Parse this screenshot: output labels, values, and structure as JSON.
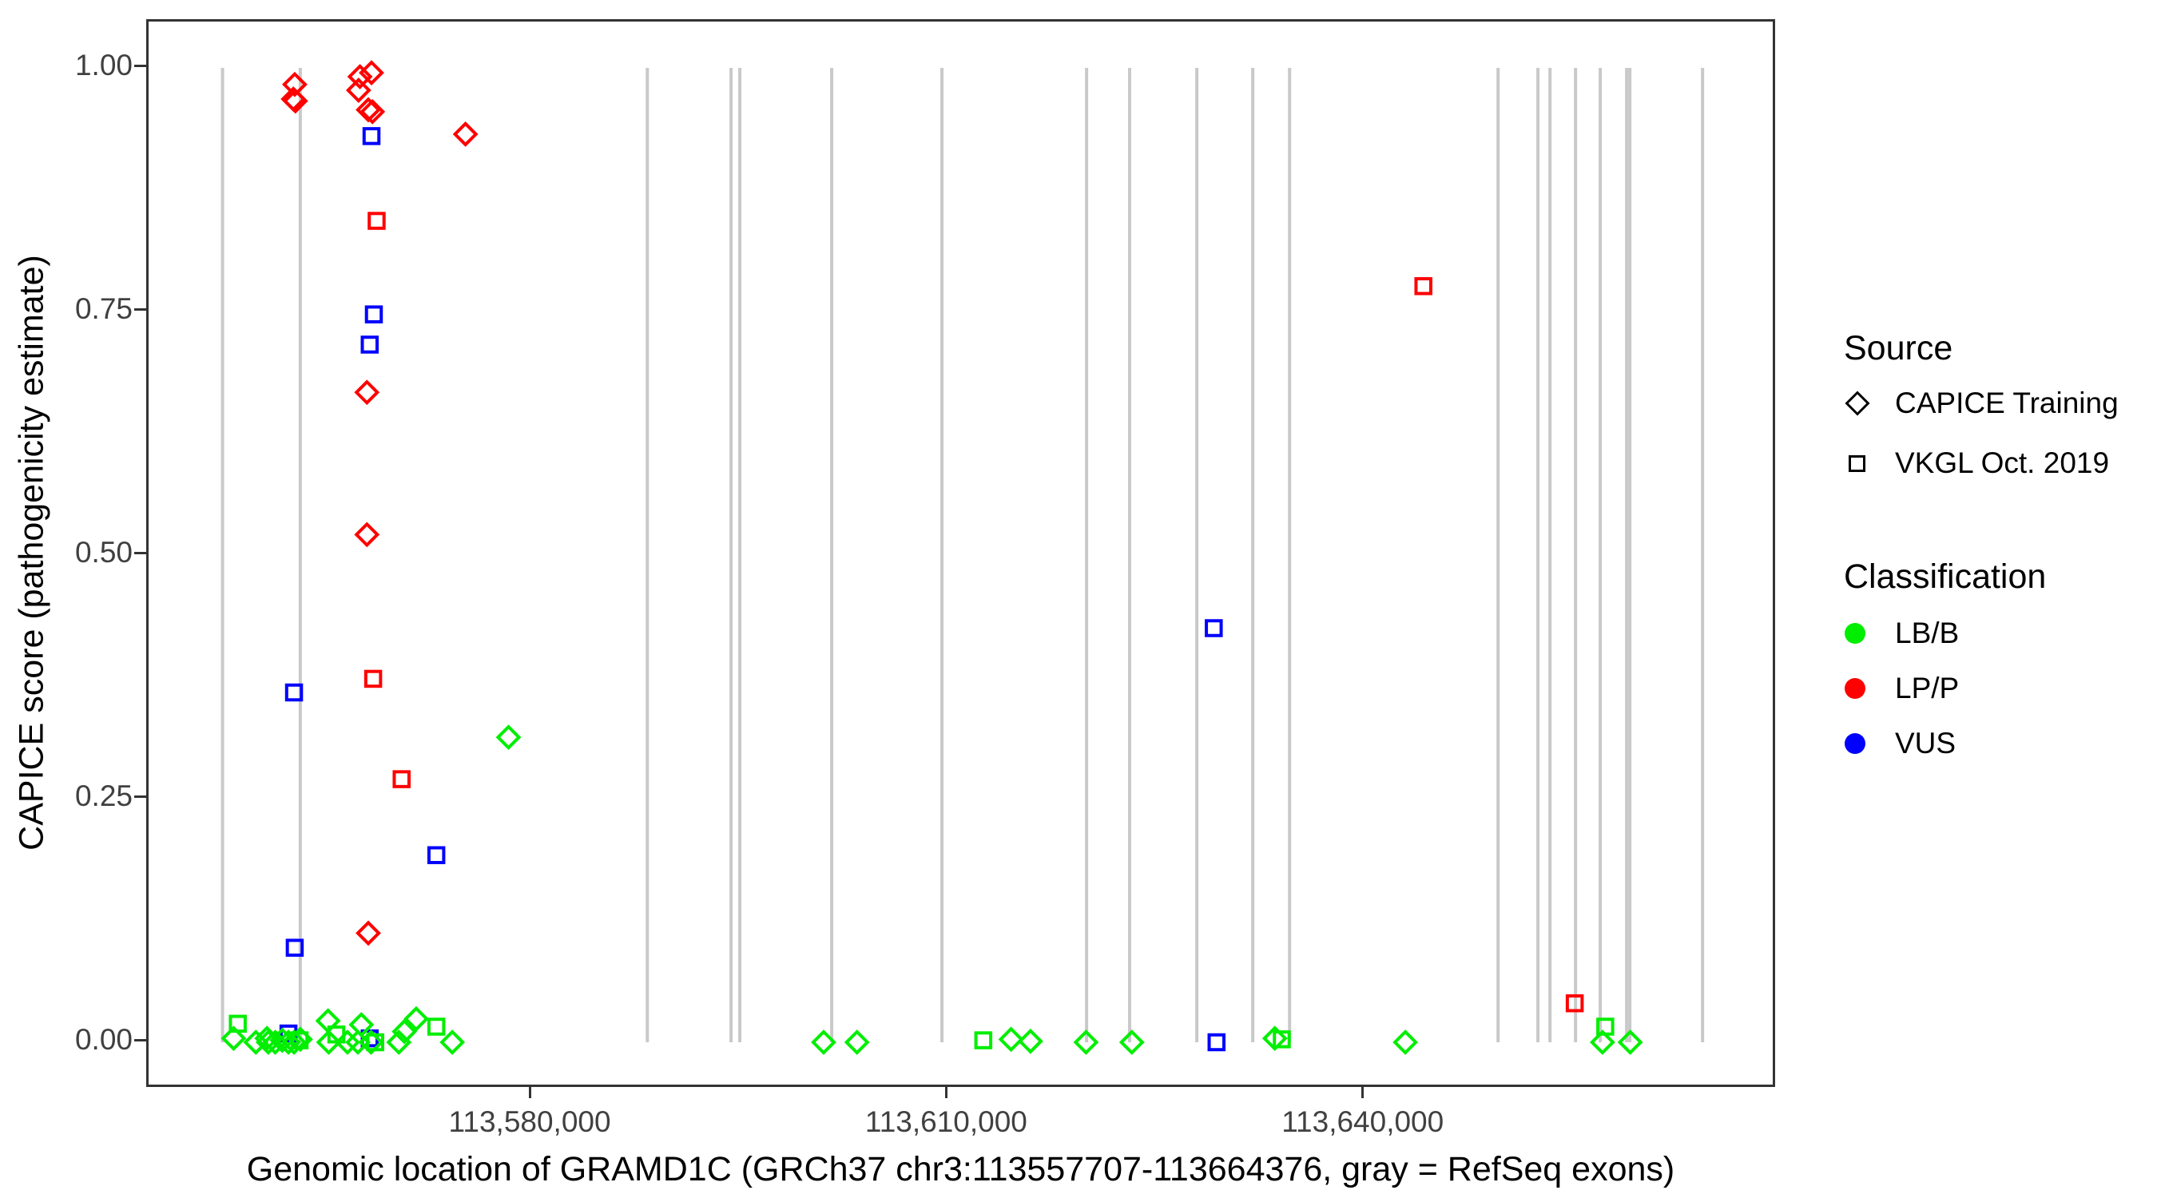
{
  "figure": {
    "y_axis": {
      "title": "CAPICE score (pathogenicity estimate)",
      "tick_labels": [
        "0.00",
        "0.25",
        "0.50",
        "0.75",
        "1.00"
      ],
      "tick_values": [
        0.0,
        0.25,
        0.5,
        0.75,
        1.0
      ]
    },
    "x_axis": {
      "title": "Genomic location of GRAMD1C (GRCh37 chr3:113557707-113664376, gray = RefSeq exons)",
      "tick_labels": [
        "113,580,000",
        "113,610,000",
        "113,640,000"
      ],
      "tick_values": [
        113580000,
        113610000,
        113640000
      ]
    },
    "legend": {
      "source": {
        "title": "Source",
        "items": [
          {
            "label": "CAPICE Training",
            "shape": "diamond"
          },
          {
            "label": "VKGL Oct. 2019",
            "shape": "square"
          }
        ]
      },
      "classification": {
        "title": "Classification",
        "items": [
          {
            "label": "LB/B",
            "color": "#00EE00"
          },
          {
            "label": "LP/P",
            "color": "#FF0000"
          },
          {
            "label": "VUS",
            "color": "#0000FF"
          }
        ]
      }
    },
    "colors": {
      "LB/B": "#00EE00",
      "LP/P": "#FF0000",
      "VUS": "#0000FF",
      "exon_line": "#C9C9C9",
      "axis_text": "#404040",
      "border": "#333333"
    }
  },
  "chart_data": {
    "type": "scatter",
    "title": "",
    "xlabel": "Genomic location of GRAMD1C (GRCh37 chr3:113557707-113664376, gray = RefSeq exons)",
    "ylabel": "CAPICE score (pathogenicity estimate)",
    "xlim": [
      113552374,
      113669709
    ],
    "ylim": [
      0,
      1
    ],
    "grid": false,
    "legend_position": "right",
    "shape_by": "Source (diamond = CAPICE Training, square = VKGL Oct. 2019)",
    "color_by": "Classification (green = LB/B, red = LP/P, blue = VUS)",
    "exon_lines_x": [
      113557700,
      113563300,
      113588300,
      113594330,
      113594960,
      113601580,
      113609520,
      113619940,
      113623040,
      113627880,
      113631910,
      113634560,
      113649580,
      113652450,
      113653320,
      113655160,
      113656940,
      113658840,
      113659070,
      113664310
    ],
    "points": [
      {
        "x": 113562900,
        "y": 0.983,
        "source": "CAPICE Training",
        "classification": "LP/P"
      },
      {
        "x": 113562800,
        "y": 0.968,
        "source": "CAPICE Training",
        "classification": "LP/P"
      },
      {
        "x": 113562950,
        "y": 0.966,
        "source": "CAPICE Training",
        "classification": "LP/P"
      },
      {
        "x": 113567600,
        "y": 0.991,
        "source": "CAPICE Training",
        "classification": "LP/P"
      },
      {
        "x": 113568430,
        "y": 0.995,
        "source": "CAPICE Training",
        "classification": "LP/P"
      },
      {
        "x": 113567500,
        "y": 0.977,
        "source": "CAPICE Training",
        "classification": "LP/P"
      },
      {
        "x": 113568200,
        "y": 0.957,
        "source": "CAPICE Training",
        "classification": "LP/P"
      },
      {
        "x": 113568500,
        "y": 0.955,
        "source": "CAPICE Training",
        "classification": "LP/P"
      },
      {
        "x": 113575200,
        "y": 0.932,
        "source": "CAPICE Training",
        "classification": "LP/P"
      },
      {
        "x": 113568100,
        "y": 0.667,
        "source": "CAPICE Training",
        "classification": "LP/P"
      },
      {
        "x": 113568100,
        "y": 0.521,
        "source": "CAPICE Training",
        "classification": "LP/P"
      },
      {
        "x": 113568200,
        "y": 0.112,
        "source": "CAPICE Training",
        "classification": "LP/P"
      },
      {
        "x": 113568800,
        "y": 0.843,
        "source": "VKGL Oct. 2019",
        "classification": "LP/P"
      },
      {
        "x": 113568550,
        "y": 0.373,
        "source": "VKGL Oct. 2019",
        "classification": "LP/P"
      },
      {
        "x": 113570600,
        "y": 0.27,
        "source": "VKGL Oct. 2019",
        "classification": "LP/P"
      },
      {
        "x": 113644200,
        "y": 0.776,
        "source": "VKGL Oct. 2019",
        "classification": "LP/P"
      },
      {
        "x": 113655100,
        "y": 0.04,
        "source": "VKGL Oct. 2019",
        "classification": "LP/P"
      },
      {
        "x": 113568430,
        "y": 0.93,
        "source": "VKGL Oct. 2019",
        "classification": "VUS"
      },
      {
        "x": 113568600,
        "y": 0.747,
        "source": "VKGL Oct. 2019",
        "classification": "VUS"
      },
      {
        "x": 113568300,
        "y": 0.716,
        "source": "VKGL Oct. 2019",
        "classification": "VUS"
      },
      {
        "x": 113562850,
        "y": 0.359,
        "source": "VKGL Oct. 2019",
        "classification": "VUS"
      },
      {
        "x": 113573100,
        "y": 0.192,
        "source": "VKGL Oct. 2019",
        "classification": "VUS"
      },
      {
        "x": 113562900,
        "y": 0.097,
        "source": "VKGL Oct. 2019",
        "classification": "VUS"
      },
      {
        "x": 113629100,
        "y": 0.425,
        "source": "VKGL Oct. 2019",
        "classification": "VUS"
      },
      {
        "x": 113629300,
        "y": 0.0,
        "source": "VKGL Oct. 2019",
        "classification": "VUS"
      },
      {
        "x": 113562450,
        "y": 0.009,
        "source": "VKGL Oct. 2019",
        "classification": "VUS"
      },
      {
        "x": 113568300,
        "y": 0.004,
        "source": "VKGL Oct. 2019",
        "classification": "VUS"
      },
      {
        "x": 113578300,
        "y": 0.313,
        "source": "CAPICE Training",
        "classification": "LB/B"
      },
      {
        "x": 113558500,
        "y": 0.004,
        "source": "CAPICE Training",
        "classification": "LB/B"
      },
      {
        "x": 113560100,
        "y": 0.0,
        "source": "CAPICE Training",
        "classification": "LB/B"
      },
      {
        "x": 113560900,
        "y": 0.004,
        "source": "CAPICE Training",
        "classification": "LB/B"
      },
      {
        "x": 113561000,
        "y": 0.0,
        "source": "CAPICE Training",
        "classification": "LB/B"
      },
      {
        "x": 113561500,
        "y": 0.0,
        "source": "CAPICE Training",
        "classification": "LB/B"
      },
      {
        "x": 113562000,
        "y": 0.002,
        "source": "CAPICE Training",
        "classification": "LB/B"
      },
      {
        "x": 113562450,
        "y": 0.0,
        "source": "CAPICE Training",
        "classification": "LB/B"
      },
      {
        "x": 113562850,
        "y": 0.0,
        "source": "CAPICE Training",
        "classification": "LB/B"
      },
      {
        "x": 113563300,
        "y": 0.003,
        "source": "CAPICE Training",
        "classification": "LB/B"
      },
      {
        "x": 113565300,
        "y": 0.022,
        "source": "CAPICE Training",
        "classification": "LB/B"
      },
      {
        "x": 113565350,
        "y": 0.0,
        "source": "CAPICE Training",
        "classification": "LB/B"
      },
      {
        "x": 113566700,
        "y": 0.0,
        "source": "CAPICE Training",
        "classification": "LB/B"
      },
      {
        "x": 113567700,
        "y": 0.018,
        "source": "CAPICE Training",
        "classification": "LB/B"
      },
      {
        "x": 113567450,
        "y": 0.0,
        "source": "CAPICE Training",
        "classification": "LB/B"
      },
      {
        "x": 113568400,
        "y": 0.0,
        "source": "CAPICE Training",
        "classification": "LB/B"
      },
      {
        "x": 113570400,
        "y": 0.0,
        "source": "CAPICE Training",
        "classification": "LB/B"
      },
      {
        "x": 113570800,
        "y": 0.011,
        "source": "CAPICE Training",
        "classification": "LB/B"
      },
      {
        "x": 113571650,
        "y": 0.024,
        "source": "CAPICE Training",
        "classification": "LB/B"
      },
      {
        "x": 113574250,
        "y": 0.0,
        "source": "CAPICE Training",
        "classification": "LB/B"
      },
      {
        "x": 113601000,
        "y": 0.0,
        "source": "CAPICE Training",
        "classification": "LB/B"
      },
      {
        "x": 113603400,
        "y": 0.0,
        "source": "CAPICE Training",
        "classification": "LB/B"
      },
      {
        "x": 113614500,
        "y": 0.003,
        "source": "CAPICE Training",
        "classification": "LB/B"
      },
      {
        "x": 113615900,
        "y": 0.001,
        "source": "CAPICE Training",
        "classification": "LB/B"
      },
      {
        "x": 113619900,
        "y": 0.0,
        "source": "CAPICE Training",
        "classification": "LB/B"
      },
      {
        "x": 113623200,
        "y": 0.0,
        "source": "CAPICE Training",
        "classification": "LB/B"
      },
      {
        "x": 113633500,
        "y": 0.004,
        "source": "CAPICE Training",
        "classification": "LB/B"
      },
      {
        "x": 113642900,
        "y": 0.0,
        "source": "CAPICE Training",
        "classification": "LB/B"
      },
      {
        "x": 113657100,
        "y": 0.0,
        "source": "CAPICE Training",
        "classification": "LB/B"
      },
      {
        "x": 113659100,
        "y": 0.0,
        "source": "CAPICE Training",
        "classification": "LB/B"
      },
      {
        "x": 113558800,
        "y": 0.019,
        "source": "VKGL Oct. 2019",
        "classification": "LB/B"
      },
      {
        "x": 113563250,
        "y": 0.002,
        "source": "VKGL Oct. 2019",
        "classification": "LB/B"
      },
      {
        "x": 113565900,
        "y": 0.008,
        "source": "VKGL Oct. 2019",
        "classification": "LB/B"
      },
      {
        "x": 113568700,
        "y": 0.0,
        "source": "VKGL Oct. 2019",
        "classification": "LB/B"
      },
      {
        "x": 113573100,
        "y": 0.016,
        "source": "VKGL Oct. 2019",
        "classification": "LB/B"
      },
      {
        "x": 113612500,
        "y": 0.002,
        "source": "VKGL Oct. 2019",
        "classification": "LB/B"
      },
      {
        "x": 113634000,
        "y": 0.003,
        "source": "VKGL Oct. 2019",
        "classification": "LB/B"
      },
      {
        "x": 113657300,
        "y": 0.016,
        "source": "VKGL Oct. 2019",
        "classification": "LB/B"
      }
    ]
  }
}
